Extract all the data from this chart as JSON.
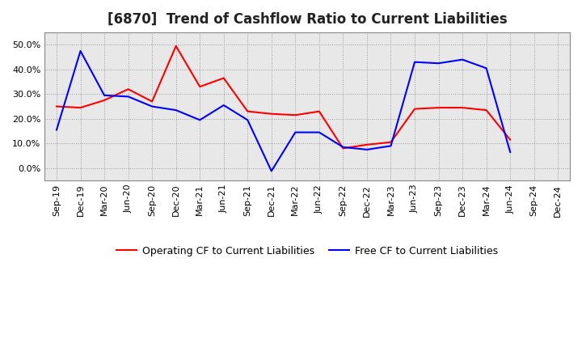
{
  "title": "[6870]  Trend of Cashflow Ratio to Current Liabilities",
  "x_labels": [
    "Sep-19",
    "Dec-19",
    "Mar-20",
    "Jun-20",
    "Sep-20",
    "Dec-20",
    "Mar-21",
    "Jun-21",
    "Sep-21",
    "Dec-21",
    "Mar-22",
    "Jun-22",
    "Sep-22",
    "Dec-22",
    "Mar-23",
    "Jun-23",
    "Sep-23",
    "Dec-23",
    "Mar-24",
    "Jun-24",
    "Sep-24",
    "Dec-24"
  ],
  "operating_cf": [
    0.25,
    0.245,
    0.275,
    0.32,
    0.27,
    0.495,
    0.33,
    0.365,
    0.23,
    0.22,
    0.215,
    0.23,
    0.08,
    0.095,
    0.105,
    0.24,
    0.245,
    0.245,
    0.235,
    0.115,
    null,
    null
  ],
  "free_cf": [
    0.155,
    0.475,
    0.295,
    0.29,
    0.25,
    0.235,
    0.195,
    0.255,
    0.195,
    -0.012,
    0.145,
    0.145,
    0.085,
    0.075,
    0.09,
    0.43,
    0.425,
    0.44,
    0.405,
    0.065,
    null,
    null
  ],
  "ylim": [
    -0.05,
    0.55
  ],
  "yticks": [
    0.0,
    0.1,
    0.2,
    0.3,
    0.4,
    0.5
  ],
  "operating_color": "#ff0000",
  "free_color": "#0000ff",
  "plot_bg_color": "#e8e8e8",
  "fig_bg_color": "#ffffff",
  "grid_color": "#999999",
  "title_fontsize": 12,
  "legend_fontsize": 9,
  "tick_fontsize": 8
}
